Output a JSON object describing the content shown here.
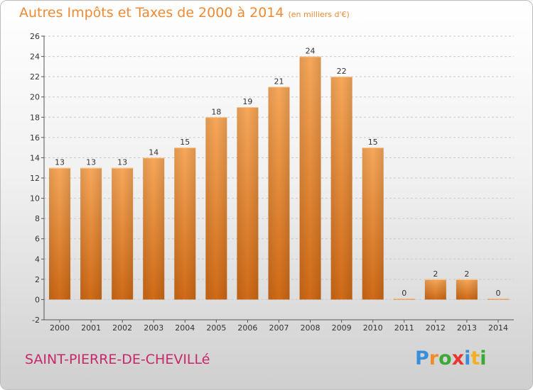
{
  "title": "Autres Impôts et Taxes de 2000 à 2014",
  "unit_label": "(en milliers d'€)",
  "commune": "SAINT-PIERRE-DE-CHEVILLé",
  "logo": {
    "letters": [
      "P",
      "r",
      "o",
      "x",
      "i",
      "t",
      "i"
    ],
    "colors": [
      "#3a8fd8",
      "#f28c28",
      "#3aaa35",
      "#e8352f",
      "#3a8fd8",
      "#f2b01e",
      "#3aaa35"
    ]
  },
  "colors": {
    "bar_light": "#f7a85a",
    "bar_dark": "#cf6a16",
    "title": "#ef8a34",
    "commune": "#c8286a"
  },
  "chart_data": {
    "type": "bar",
    "categories": [
      "2000",
      "2001",
      "2002",
      "2003",
      "2004",
      "2005",
      "2006",
      "2007",
      "2008",
      "2009",
      "2010",
      "2011",
      "2012",
      "2013",
      "2014"
    ],
    "values": [
      13,
      13,
      13,
      14,
      15,
      18,
      19,
      21,
      24,
      22,
      15,
      0,
      2,
      2,
      0
    ],
    "data_labels": [
      "13",
      "13",
      "13",
      "14",
      "15",
      "18",
      "19",
      "21",
      "24",
      "22",
      "15",
      "0",
      "2",
      "2",
      "0"
    ],
    "ylim": [
      -2,
      26
    ],
    "yticks": [
      "-2",
      "0",
      "2",
      "4",
      "6",
      "8",
      "10",
      "12",
      "14",
      "16",
      "18",
      "20",
      "22",
      "24",
      "26"
    ],
    "grid": "horizontal dashed",
    "xlabel": "",
    "ylabel": ""
  }
}
